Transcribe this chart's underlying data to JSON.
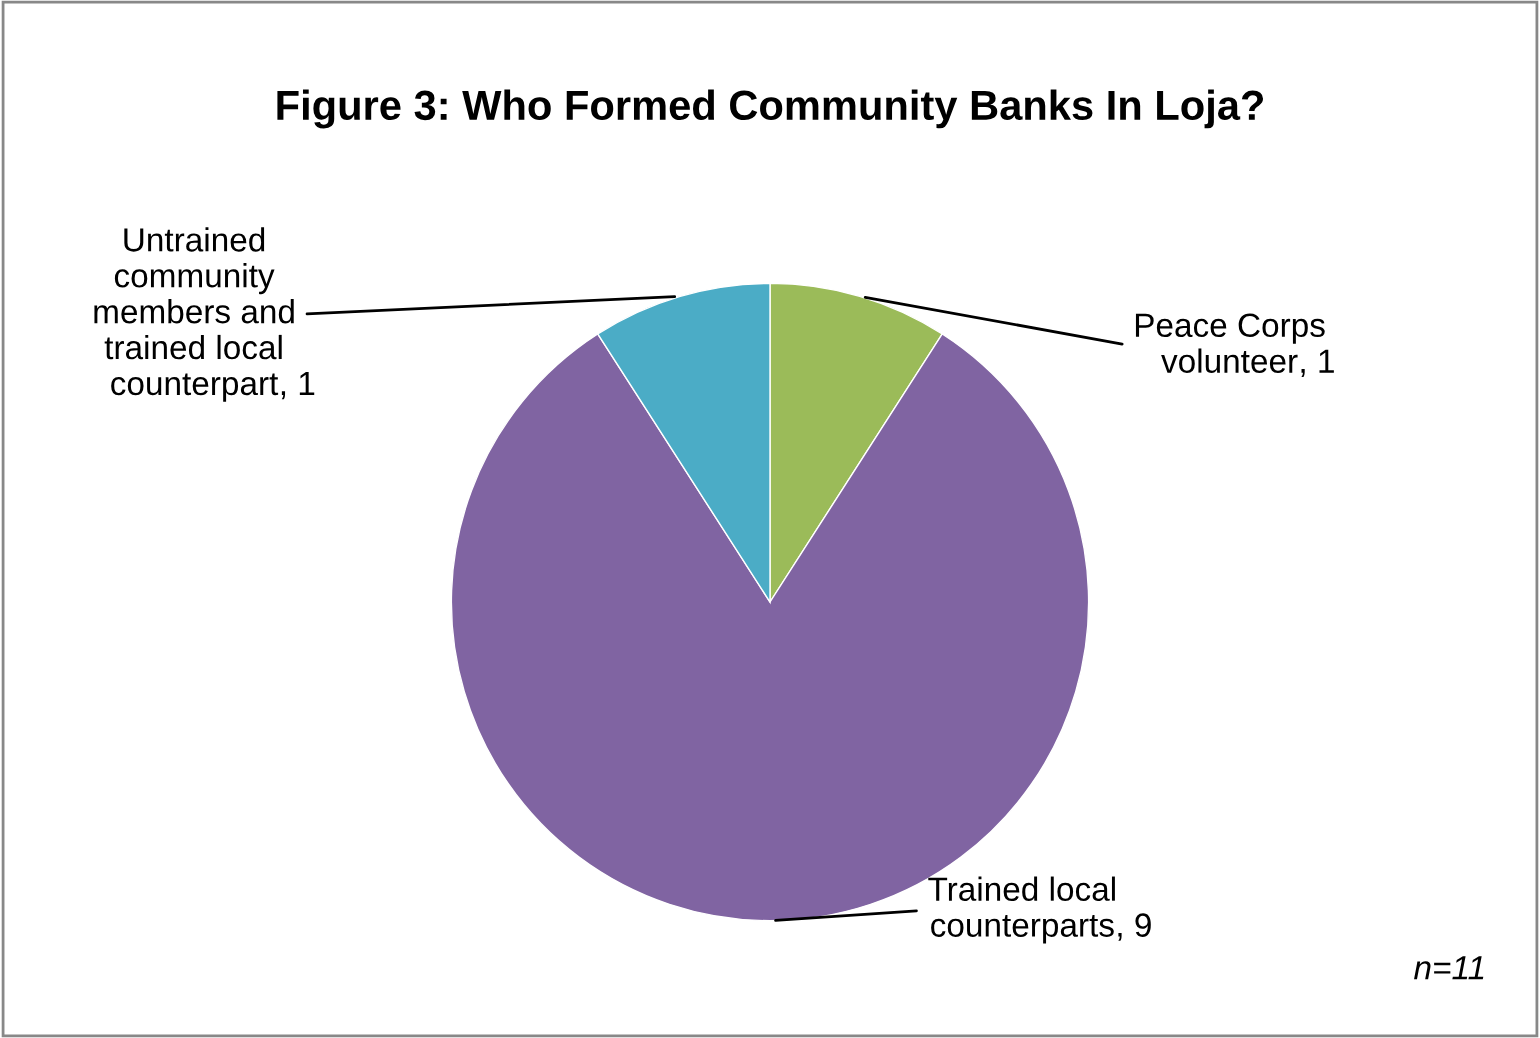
{
  "chart_data": {
    "type": "pie",
    "title": "Figure 3: Who Formed Community Banks In Loja?",
    "categories": [
      "Peace Corps\nvolunteer",
      "Trained local\ncounterparts",
      "Untrained\ncommunity\nmembers and\ntrained local\ncounterpart"
    ],
    "values": [
      1,
      9,
      1
    ],
    "colors": [
      "#9bbb59",
      "#8064a2",
      "#4bacc6"
    ],
    "value_labels": [
      ", 1",
      ", 9",
      ", 1"
    ],
    "annotations": [
      "n=11"
    ]
  }
}
